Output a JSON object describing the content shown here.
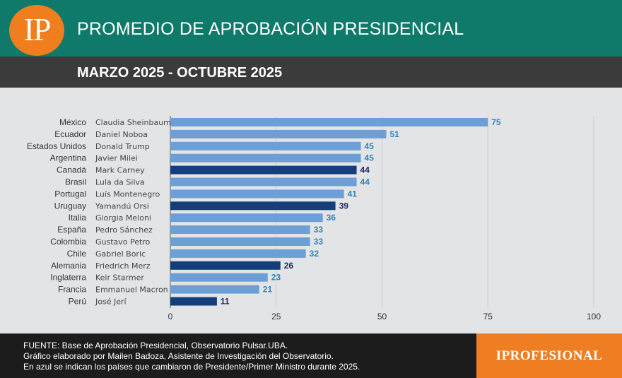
{
  "header": {
    "logo_text": "IP",
    "title": "PROMEDIO DE APROBACIÓN PRESIDENCIAL",
    "subtitle": "MARZO 2025 - OCTUBRE 2025"
  },
  "colors": {
    "header_band": "#0f7a6a",
    "logo_orange": "#f07e1e",
    "subheader_band": "#3b3b3b",
    "bar_light": "#6d9fd6",
    "bar_dark": "#153f7a",
    "label_light": "#2e86c1",
    "label_dark": "#1f2a6b",
    "footer_bg": "#1c1c1c",
    "brand_bg": "#ef7e22"
  },
  "chart_data": {
    "type": "bar",
    "orientation": "horizontal",
    "title": "PROMEDIO DE APROBACIÓN PRESIDENCIAL",
    "subtitle": "MARZO 2025 - OCTUBRE 2025",
    "xlim": [
      0,
      100
    ],
    "xticks": [
      0,
      25,
      50,
      75,
      100
    ],
    "grid": true,
    "rows": [
      {
        "country": "México",
        "leader": "Claudia Sheinbaum",
        "value": 75,
        "changed": false
      },
      {
        "country": "Ecuador",
        "leader": "Daniel Noboa",
        "value": 51,
        "changed": false
      },
      {
        "country": "Estados Unidos",
        "leader": "Donald Trump",
        "value": 45,
        "changed": false
      },
      {
        "country": "Argentina",
        "leader": "Javier Milei",
        "value": 45,
        "changed": false
      },
      {
        "country": "Canadá",
        "leader": "Mark Carney",
        "value": 44,
        "changed": true
      },
      {
        "country": "Brasil",
        "leader": "Lula da Silva",
        "value": 44,
        "changed": false
      },
      {
        "country": "Portugal",
        "leader": "Luís Montenegro",
        "value": 41,
        "changed": false
      },
      {
        "country": "Uruguay",
        "leader": "Yamandú Orsi",
        "value": 39,
        "changed": true
      },
      {
        "country": "Italia",
        "leader": "Giorgia Meloni",
        "value": 36,
        "changed": false
      },
      {
        "country": "España",
        "leader": "Pedro Sánchez",
        "value": 33,
        "changed": false
      },
      {
        "country": "Colombia",
        "leader": "Gustavo Petro",
        "value": 33,
        "changed": false
      },
      {
        "country": "Chile",
        "leader": "Gabriel Boric",
        "value": 32,
        "changed": false
      },
      {
        "country": "Alemania",
        "leader": "Friedrich Merz",
        "value": 26,
        "changed": true
      },
      {
        "country": "Inglaterra",
        "leader": "Keir Starmer",
        "value": 23,
        "changed": false
      },
      {
        "country": "Francia",
        "leader": "Emmanuel Macron",
        "value": 21,
        "changed": false
      },
      {
        "country": "Perú",
        "leader": "José Jerí",
        "value": 11,
        "changed": true
      }
    ]
  },
  "footer": {
    "line1": "FUENTE: Base de Aprobación Presidencial, Observatorio Pulsar.UBA.",
    "line2": "Gráfico elaborado por Mailen Badoza, Asistente de Investigación del Observatorio.",
    "line3": "En azul se indican los países que cambiaron de Presidente/Primer Ministro durante 2025.",
    "brand": "IPROFESIONAL"
  }
}
